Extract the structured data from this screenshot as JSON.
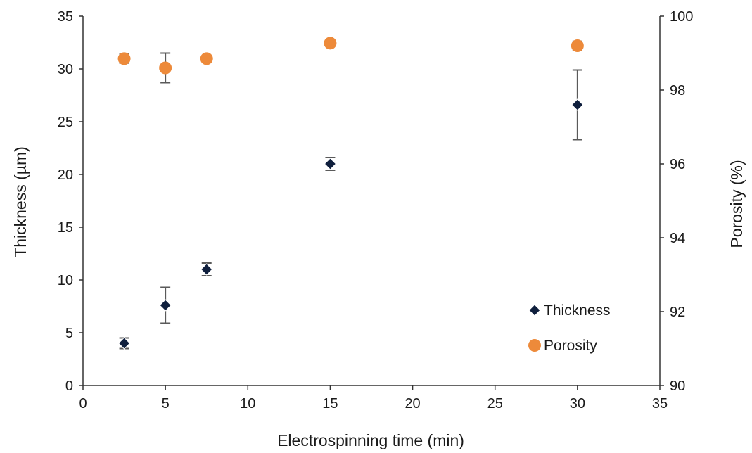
{
  "chart_data": {
    "type": "scatter",
    "xlabel": "Electrospinning time (min)",
    "ylabel": "Thickness (µm)",
    "y2label": "Porosity (%)",
    "xlim": [
      0,
      35
    ],
    "ylim": [
      0,
      35
    ],
    "y2lim": [
      90,
      100
    ],
    "xticks": [
      0,
      5,
      10,
      15,
      20,
      25,
      30,
      35
    ],
    "yticks": [
      0,
      5,
      10,
      15,
      20,
      25,
      30,
      35
    ],
    "y2ticks": [
      90,
      92,
      94,
      96,
      98,
      100
    ],
    "grid": false,
    "legend_position": "bottom-right",
    "series": [
      {
        "name": "Thickness",
        "axis": "left",
        "marker": "diamond",
        "color": "#0f1f3d",
        "points": [
          {
            "x": 2.5,
            "y": 4.0,
            "err": 0.5
          },
          {
            "x": 5,
            "y": 7.6,
            "err": 1.7
          },
          {
            "x": 7.5,
            "y": 11.0,
            "err": 0.6
          },
          {
            "x": 15,
            "y": 21.0,
            "err": 0.6
          },
          {
            "x": 30,
            "y": 26.6,
            "err": 3.3
          }
        ]
      },
      {
        "name": "Porosity",
        "axis": "right",
        "marker": "circle",
        "color": "#ed8a3a",
        "points": [
          {
            "x": 2.5,
            "y": 98.85,
            "err": 0.12
          },
          {
            "x": 5,
            "y": 98.6,
            "err": 0.4
          },
          {
            "x": 7.5,
            "y": 98.85,
            "err": 0
          },
          {
            "x": 15,
            "y": 99.27,
            "err": 0
          },
          {
            "x": 30,
            "y": 99.2,
            "err": 0.12
          }
        ]
      }
    ]
  }
}
